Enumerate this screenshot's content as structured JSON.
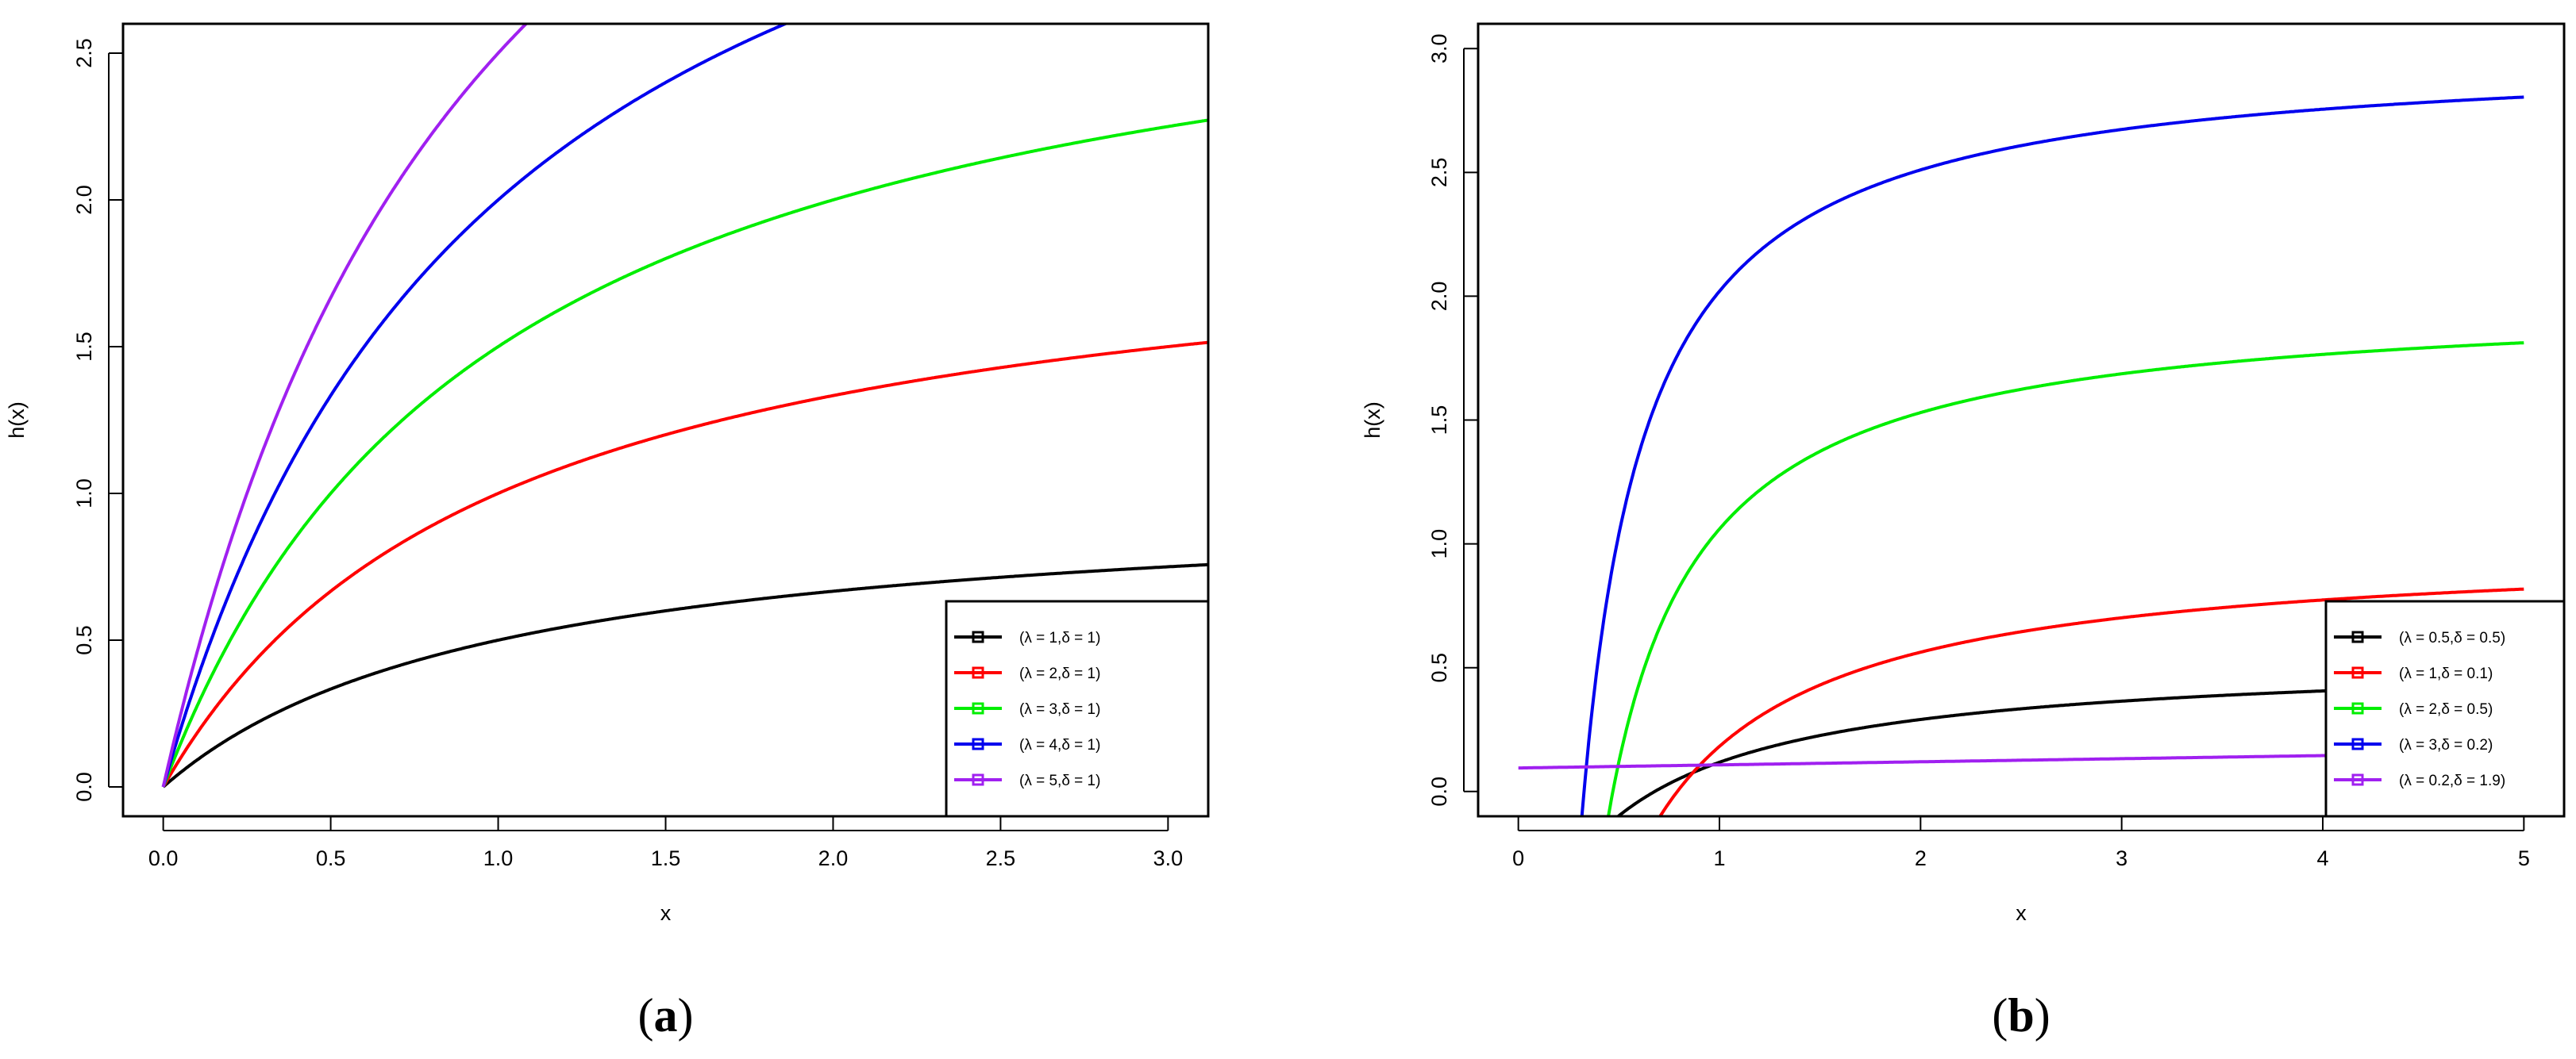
{
  "chart_data": [
    {
      "type": "line",
      "panel_label": "a",
      "xlabel": "x",
      "ylabel": "h(x)",
      "xlim": [
        -0.12,
        3.12
      ],
      "ylim": [
        -0.1,
        2.6
      ],
      "xticks": [
        "0.0",
        "0.5",
        "1.0",
        "1.5",
        "2.0",
        "2.5",
        "3.0"
      ],
      "yticks": [
        "0.0",
        "0.5",
        "1.0",
        "1.5",
        "2.0",
        "2.5"
      ],
      "legend_position": "bottom-right",
      "series": [
        {
          "name": "(λ = 1,δ = 1)",
          "color": "#000000",
          "lambda": 1,
          "delta": 1
        },
        {
          "name": "(λ = 2,δ = 1)",
          "color": "#ff0000",
          "lambda": 2,
          "delta": 1
        },
        {
          "name": "(λ = 3,δ = 1)",
          "color": "#00ee00",
          "lambda": 3,
          "delta": 1
        },
        {
          "name": "(λ = 4,δ = 1)",
          "color": "#0000ee",
          "lambda": 4,
          "delta": 1
        },
        {
          "name": "(λ = 5,δ = 1)",
          "color": "#a020f0",
          "lambda": 5,
          "delta": 1
        }
      ]
    },
    {
      "type": "line",
      "panel_label": "b",
      "xlabel": "x",
      "ylabel": "h(x)",
      "xlim": [
        -0.2,
        5.2
      ],
      "ylim": [
        -0.1,
        3.1
      ],
      "xticks": [
        "0",
        "1",
        "2",
        "3",
        "4",
        "5"
      ],
      "yticks": [
        "0.0",
        "0.5",
        "1.0",
        "1.5",
        "2.0",
        "2.5",
        "3.0"
      ],
      "legend_position": "bottom-right",
      "series": [
        {
          "name": "(λ = 0.5,δ = 0.5)",
          "color": "#000000",
          "lambda": 0.5,
          "delta": 0.5
        },
        {
          "name": "(λ = 1,δ = 0.1)",
          "color": "#ff0000",
          "lambda": 1,
          "delta": 0.1
        },
        {
          "name": "(λ = 2,δ = 0.5)",
          "color": "#00ee00",
          "lambda": 2,
          "delta": 0.5
        },
        {
          "name": "(λ = 3,δ = 0.2)",
          "color": "#0000ee",
          "lambda": 3,
          "delta": 0.2
        },
        {
          "name": "(λ = 0.2,δ = 1.9)",
          "color": "#a020f0",
          "lambda": 0.2,
          "delta": 1.9
        }
      ]
    }
  ]
}
